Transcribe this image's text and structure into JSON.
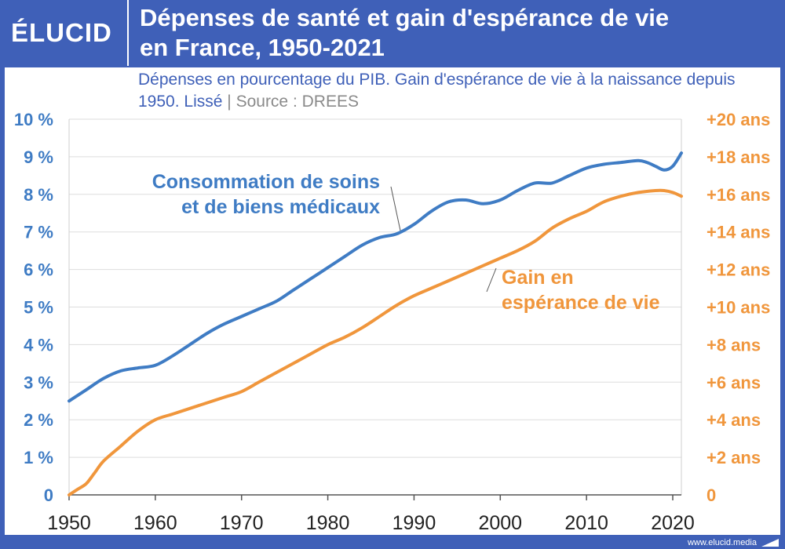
{
  "header": {
    "logo": "ÉLUCID",
    "title_line1": "Dépenses de santé et gain d'espérance de vie",
    "title_line2": "en France, 1950-2021"
  },
  "subtitle": {
    "text": "Dépenses en pourcentage du PIB. Gain d'espérance de vie à la naissance depuis 1950. Lissé",
    "separator": "|",
    "source": "Source : DREES"
  },
  "footer": {
    "url": "www.elucid.media"
  },
  "colors": {
    "brand_blue": "#3F60B8",
    "series_blue": "#3F7CC4",
    "series_orange": "#F0963C",
    "grid": "#dddddd"
  },
  "chart_data": {
    "type": "line",
    "x_ticks": [
      "1950",
      "1960",
      "1970",
      "1980",
      "1990",
      "2000",
      "2010",
      "2020"
    ],
    "xlim": [
      1950,
      2021
    ],
    "y_left": {
      "ticks": [
        "0",
        "1 %",
        "2 %",
        "3 %",
        "4 %",
        "5 %",
        "6 %",
        "7 %",
        "8 %",
        "9 %",
        "10 %"
      ],
      "ylim": [
        0,
        10
      ]
    },
    "y_right": {
      "ticks": [
        "0",
        "+2 ans",
        "+4 ans",
        "+6 ans",
        "+8 ans",
        "+10 ans",
        "+12 ans",
        "+14 ans",
        "+16 ans",
        "+18 ans",
        "+20 ans"
      ],
      "ylim": [
        0,
        20
      ]
    },
    "grid": true,
    "series": [
      {
        "axis": "left",
        "color": "#3F7CC4",
        "label_lines": [
          "Consommation de soins",
          "et de biens médicaux"
        ],
        "x": [
          1950,
          1952,
          1954,
          1956,
          1958,
          1960,
          1962,
          1964,
          1966,
          1968,
          1970,
          1972,
          1974,
          1976,
          1978,
          1980,
          1982,
          1984,
          1986,
          1988,
          1990,
          1992,
          1994,
          1996,
          1998,
          2000,
          2002,
          2004,
          2006,
          2008,
          2010,
          2012,
          2014,
          2016,
          2017,
          2018,
          2019,
          2020,
          2021
        ],
        "values": [
          2.5,
          2.8,
          3.1,
          3.3,
          3.38,
          3.45,
          3.7,
          4.0,
          4.3,
          4.55,
          4.75,
          4.95,
          5.15,
          5.45,
          5.75,
          6.05,
          6.35,
          6.65,
          6.85,
          6.95,
          7.2,
          7.55,
          7.8,
          7.85,
          7.75,
          7.85,
          8.1,
          8.3,
          8.3,
          8.5,
          8.7,
          8.8,
          8.85,
          8.9,
          8.85,
          8.75,
          8.65,
          8.75,
          9.1
        ]
      },
      {
        "axis": "right",
        "color": "#F0963C",
        "label_lines": [
          "Gain en",
          "espérance de vie"
        ],
        "x": [
          1950,
          1951,
          1952,
          1953,
          1954,
          1956,
          1958,
          1960,
          1962,
          1964,
          1966,
          1968,
          1970,
          1972,
          1974,
          1976,
          1978,
          1980,
          1982,
          1984,
          1986,
          1988,
          1990,
          1992,
          1994,
          1996,
          1998,
          2000,
          2002,
          2004,
          2006,
          2008,
          2010,
          2012,
          2014,
          2016,
          2018,
          2019,
          2020,
          2021
        ],
        "values": [
          0,
          0.3,
          0.6,
          1.2,
          1.8,
          2.6,
          3.4,
          4.0,
          4.3,
          4.6,
          4.9,
          5.2,
          5.5,
          6.0,
          6.5,
          7.0,
          7.5,
          8.0,
          8.4,
          8.9,
          9.5,
          10.1,
          10.6,
          11.0,
          11.4,
          11.8,
          12.2,
          12.6,
          13.0,
          13.5,
          14.2,
          14.7,
          15.1,
          15.6,
          15.9,
          16.1,
          16.2,
          16.2,
          16.1,
          15.9
        ]
      }
    ]
  }
}
